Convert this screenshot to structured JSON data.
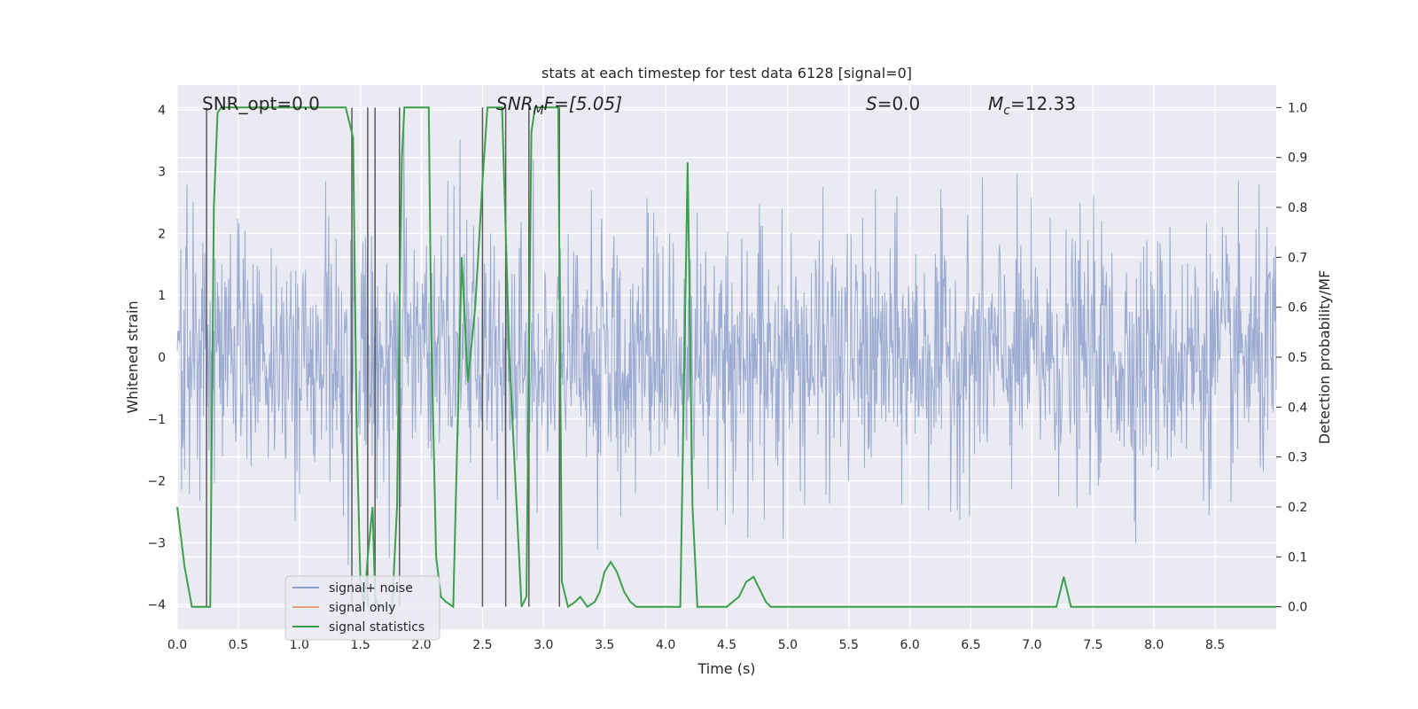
{
  "chart_data": {
    "type": "line",
    "title": "stats at each timestep for test data 6128 [signal=0]",
    "xlabel": "Time (s)",
    "ylabel": "Whitened strain",
    "y2label": "Detection probability/MF",
    "xlim": [
      0.0,
      9.0
    ],
    "ylim": [
      -4.4,
      4.4
    ],
    "y2lim": [
      -0.045,
      1.045
    ],
    "xticks": [
      0.0,
      0.5,
      1.0,
      1.5,
      2.0,
      2.5,
      3.0,
      3.5,
      4.0,
      4.5,
      5.0,
      5.5,
      6.0,
      6.5,
      7.0,
      7.5,
      8.0,
      8.5
    ],
    "xtick_labels": [
      "0.0",
      "0.5",
      "1.0",
      "1.5",
      "2.0",
      "2.5",
      "3.0",
      "3.5",
      "4.0",
      "4.5",
      "5.0",
      "5.5",
      "6.0",
      "6.5",
      "7.0",
      "7.5",
      "8.0",
      "8.5"
    ],
    "yticks": [
      -4,
      -3,
      -2,
      -1,
      0,
      1,
      2,
      3,
      4
    ],
    "ytick_labels": [
      "−4",
      "−3",
      "−2",
      "−1",
      "0",
      "1",
      "2",
      "3",
      "4"
    ],
    "y2ticks": [
      0.0,
      0.1,
      0.2,
      0.3,
      0.4,
      0.5,
      0.6,
      0.7,
      0.8,
      0.9,
      1.0
    ],
    "y2tick_labels": [
      "0.0",
      "0.1",
      "0.2",
      "0.3",
      "0.4",
      "0.5",
      "0.6",
      "0.7",
      "0.8",
      "0.9",
      "1.0"
    ],
    "annotations": {
      "snr_opt": "SNR_opt=0.0",
      "snr_mf_sym": "SNR",
      "snr_mf_sub": "M",
      "snr_mf_rest": "F=[5.05]",
      "s_sym": "S",
      "s_rest": "=0.0",
      "mc_sym": "M",
      "mc_sub": "c",
      "mc_rest": "=12.33"
    },
    "noise": {
      "name": "signal+ noise",
      "color": "#8da0cb",
      "sigma": 1.0,
      "samples": 1800,
      "x_range": [
        0.0,
        9.0
      ]
    },
    "signal_only": {
      "name": "signal only",
      "color": "#e8a07f",
      "values": []
    },
    "signal_statistics": {
      "name": "signal statistics",
      "color": "#3aa14a",
      "x": [
        0.0,
        0.06,
        0.12,
        0.18,
        0.24,
        0.27,
        0.3,
        0.33,
        0.36,
        0.42,
        0.48,
        0.6,
        0.9,
        1.2,
        1.38,
        1.44,
        1.47,
        1.5,
        1.53,
        1.56,
        1.6,
        1.62,
        1.65,
        1.68,
        1.72,
        1.76,
        1.8,
        1.82,
        1.84,
        1.86,
        1.88,
        1.92,
        2.0,
        2.06,
        2.08,
        2.12,
        2.16,
        2.2,
        2.26,
        2.33,
        2.38,
        2.44,
        2.5,
        2.54,
        2.6,
        2.66,
        2.72,
        2.78,
        2.82,
        2.86,
        2.9,
        2.93,
        2.96,
        3.0,
        3.05,
        3.12,
        3.15,
        3.2,
        3.26,
        3.3,
        3.36,
        3.42,
        3.46,
        3.5,
        3.55,
        3.6,
        3.66,
        3.71,
        3.76,
        3.8,
        3.86,
        3.9,
        3.96,
        4.05,
        4.12,
        4.18,
        4.22,
        4.26,
        4.32,
        4.4,
        4.5,
        4.6,
        4.66,
        4.72,
        4.76,
        4.82,
        4.86,
        4.9,
        4.96,
        5.1,
        5.5,
        6.0,
        6.5,
        7.0,
        7.2,
        7.26,
        7.32,
        7.4,
        8.0,
        8.5,
        9.0
      ],
      "y": [
        0.2,
        0.08,
        0.0,
        0.0,
        0.0,
        0.0,
        0.8,
        0.99,
        1.0,
        1.0,
        1.0,
        1.0,
        1.0,
        1.0,
        1.0,
        0.94,
        0.35,
        0.05,
        0.0,
        0.1,
        0.2,
        0.02,
        0.0,
        0.0,
        0.0,
        0.0,
        0.2,
        0.6,
        0.9,
        1.0,
        1.0,
        1.0,
        1.0,
        1.0,
        0.55,
        0.1,
        0.02,
        0.01,
        0.0,
        0.7,
        0.45,
        0.6,
        0.85,
        1.0,
        1.0,
        1.0,
        0.5,
        0.2,
        0.0,
        0.02,
        0.95,
        1.0,
        1.0,
        1.0,
        1.0,
        1.0,
        0.05,
        0.0,
        0.01,
        0.02,
        0.0,
        0.01,
        0.03,
        0.07,
        0.09,
        0.07,
        0.03,
        0.01,
        0.0,
        0.0,
        0.0,
        0.0,
        0.0,
        0.0,
        0.0,
        0.89,
        0.2,
        0.0,
        0.0,
        0.0,
        0.0,
        0.02,
        0.05,
        0.06,
        0.04,
        0.01,
        0.0,
        0.0,
        0.0,
        0.0,
        0.0,
        0.0,
        0.0,
        0.0,
        0.0,
        0.06,
        0.0,
        0.0,
        0.0,
        0.0,
        0.0
      ]
    },
    "vlines_x": [
      0.24,
      1.43,
      1.56,
      1.62,
      1.82,
      2.5,
      2.69,
      2.88,
      3.13
    ],
    "vline_color": "#5a5a5a",
    "colors": {
      "plot_bg": "#eaeaf2",
      "grid": "#ffffff",
      "text": "#262626"
    },
    "legend": {
      "placement": "lower-left",
      "entries": [
        "signal+ noise",
        "signal only",
        "signal statistics"
      ]
    }
  }
}
